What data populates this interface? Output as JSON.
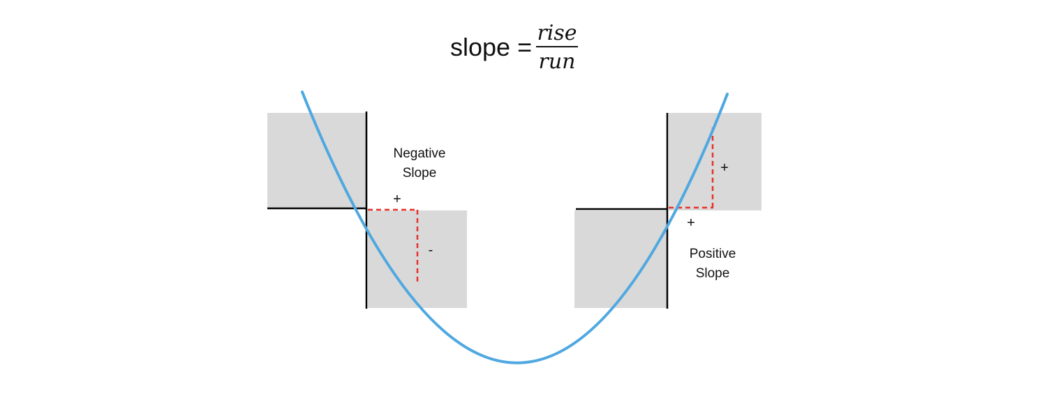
{
  "formula": {
    "lhs": "slope =",
    "numerator": "rise",
    "denominator": "run"
  },
  "negative_side": {
    "caption_line1": "Negative",
    "caption_line2": "Slope",
    "run_sign": "+",
    "rise_sign": "-"
  },
  "positive_side": {
    "caption_line1": "Positive",
    "caption_line2": "Slope",
    "run_sign": "+",
    "rise_sign": "+"
  },
  "colors": {
    "curve": "#4fa8e0",
    "quadrant_fill": "#d9d9d9",
    "axis": "#000000",
    "triangle": "#e8312a"
  }
}
